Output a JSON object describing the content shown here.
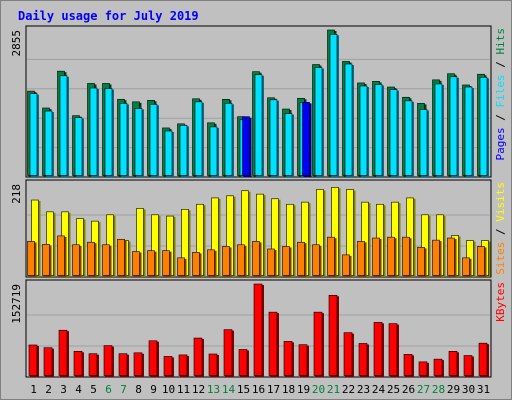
{
  "chart_data": {
    "type": "bar",
    "title": "Daily usage for July 2019",
    "categories": [
      "1",
      "2",
      "3",
      "4",
      "5",
      "6",
      "7",
      "8",
      "9",
      "10",
      "11",
      "12",
      "13",
      "14",
      "15",
      "16",
      "17",
      "18",
      "19",
      "20",
      "21",
      "22",
      "23",
      "24",
      "25",
      "26",
      "27",
      "28",
      "29",
      "30",
      "31"
    ],
    "weekend_days": [
      "6",
      "7",
      "13",
      "14",
      "20",
      "21",
      "27",
      "28"
    ],
    "panels": [
      {
        "id": "hits-files-pages",
        "y_max_label": "2855",
        "ylim": [
          0,
          2855
        ],
        "legend": [
          "Pages",
          "Files",
          "Hits"
        ],
        "series": [
          {
            "name": "Hits",
            "color": "#008040",
            "values": [
              1660,
              1330,
              2050,
              1180,
              1810,
              1810,
              1500,
              1450,
              1480,
              940,
              1020,
              1510,
              1040,
              1500,
              1160,
              2040,
              1530,
              1310,
              1520,
              2180,
              2855,
              2240,
              1820,
              1850,
              1740,
              1540,
              1420,
              1880,
              2000,
              1780,
              1990
            ]
          },
          {
            "name": "Files",
            "color": "#00e0ff",
            "values": [
              1610,
              1270,
              1960,
              1140,
              1720,
              1710,
              1420,
              1320,
              1400,
              880,
              990,
              1450,
              960,
              1420,
              1100,
              1980,
              1490,
              1220,
              1440,
              2120,
              2770,
              2190,
              1760,
              1790,
              1690,
              1470,
              1300,
              1800,
              1940,
              1740,
              1930
            ]
          },
          {
            "name": "Pages",
            "color": "#0000ff",
            "values": [
              0,
              0,
              0,
              0,
              0,
              0,
              0,
              0,
              0,
              0,
              0,
              0,
              0,
              0,
              1160,
              0,
              0,
              0,
              1440,
              0,
              0,
              0,
              0,
              0,
              0,
              0,
              0,
              0,
              0,
              0,
              0
            ]
          }
        ]
      },
      {
        "id": "visits-sites",
        "y_max_label": "218",
        "ylim": [
          0,
          218
        ],
        "legend": [
          "Sites",
          "Visits"
        ],
        "series": [
          {
            "name": "Visits",
            "color": "#ffff00",
            "values": [
              180,
              152,
              152,
              136,
              130,
              145,
              84,
              160,
              145,
              142,
              158,
              170,
              185,
              190,
              202,
              194,
              183,
              170,
              175,
              205,
              210,
              205,
              175,
              170,
              175,
              185,
              145,
              145,
              96,
              84,
              84
            ]
          },
          {
            "name": "Sites",
            "color": "#ff8000",
            "values": [
              82,
              75,
              95,
              74,
              80,
              74,
              87,
              58,
              60,
              60,
              43,
              56,
              62,
              70,
              74,
              82,
              64,
              70,
              80,
              74,
              92,
              50,
              82,
              90,
              92,
              92,
              68,
              85,
              90,
              43,
              70
            ]
          }
        ]
      },
      {
        "id": "kbytes",
        "y_max_label": "152719",
        "ylim": [
          0,
          152719
        ],
        "legend": [
          "KBytes"
        ],
        "series": [
          {
            "name": "KBytes",
            "color": "#ff0000",
            "values": [
              51500,
              47000,
              76000,
              41000,
              37000,
              50500,
              37000,
              38500,
              58500,
              32500,
              35000,
              63000,
              36500,
              77000,
              44000,
              152719,
              106000,
              57500,
              52000,
              106000,
              134000,
              72000,
              54000,
              89000,
              87000,
              36000,
              23500,
              28000,
              41000,
              34000,
              54500
            ]
          }
        ]
      }
    ]
  },
  "colors": {
    "panel_bg": "#c0c0c0",
    "page_bg": "#ffffff",
    "title": "#0000ff",
    "border": "#000000",
    "day_label": "#000000",
    "weekend_label": "#008040"
  }
}
